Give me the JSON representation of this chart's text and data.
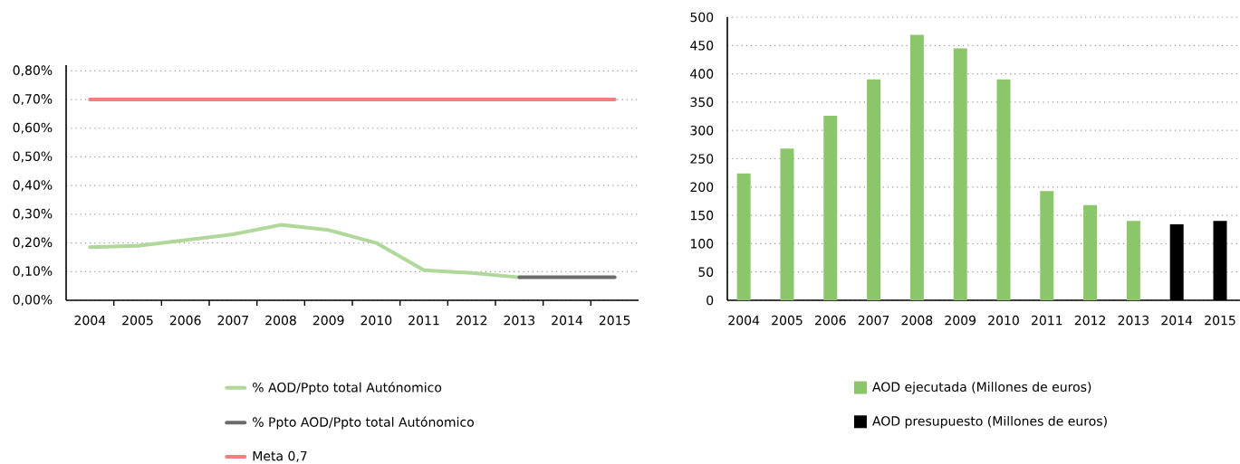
{
  "chart_data": [
    {
      "type": "line",
      "categories": [
        "2004",
        "2005",
        "2006",
        "2007",
        "2008",
        "2009",
        "2010",
        "2011",
        "2012",
        "2013",
        "2014",
        "2015"
      ],
      "series": [
        {
          "name": "% AOD/Ppto total Autónomico",
          "color": "#b0d89a",
          "values": [
            0.185,
            0.19,
            0.21,
            0.23,
            0.263,
            0.245,
            0.2,
            0.105,
            0.095,
            0.08,
            null,
            null
          ]
        },
        {
          "name": "% Ppto AOD/Ppto total Autónomico",
          "color": "#6b6b6b",
          "values": [
            null,
            null,
            null,
            null,
            null,
            null,
            null,
            null,
            null,
            0.08,
            0.08,
            0.08
          ]
        },
        {
          "name": "Meta 0,7",
          "color": "#f27f7f",
          "values": [
            0.7,
            0.7,
            0.7,
            0.7,
            0.7,
            0.7,
            0.7,
            0.7,
            0.7,
            0.7,
            0.7,
            0.7
          ]
        }
      ],
      "ylim": [
        0,
        0.82
      ],
      "yticks": [
        {
          "value": 0,
          "label": "0,00%"
        },
        {
          "value": 0.1,
          "label": "0,10%"
        },
        {
          "value": 0.2,
          "label": "0,20%"
        },
        {
          "value": 0.3,
          "label": "0,30%"
        },
        {
          "value": 0.4,
          "label": "0,40%"
        },
        {
          "value": 0.5,
          "label": "0,50%"
        },
        {
          "value": 0.6,
          "label": "0,60%"
        },
        {
          "value": 0.7,
          "label": "0,70%"
        },
        {
          "value": 0.8,
          "label": "0,80%"
        }
      ],
      "grid": "y",
      "legend": "bottom",
      "marker": "none",
      "line_style": "solid"
    },
    {
      "type": "bar",
      "categories": [
        "2004",
        "2005",
        "2006",
        "2007",
        "2008",
        "2009",
        "2010",
        "2011",
        "2012",
        "2013",
        "2014",
        "2015"
      ],
      "series": [
        {
          "name": "AOD ejecutada (Millones de euros)",
          "color": "#8cc66b",
          "values": [
            224,
            268,
            326,
            390,
            469,
            445,
            390,
            193,
            168,
            140,
            null,
            null
          ]
        },
        {
          "name": "AOD presupuesto (Millones de euros)",
          "color": "#000000",
          "values": [
            null,
            null,
            null,
            null,
            null,
            null,
            null,
            null,
            null,
            null,
            134,
            140
          ]
        }
      ],
      "ylim": [
        0,
        500
      ],
      "yticks": [
        0,
        50,
        100,
        150,
        200,
        250,
        300,
        350,
        400,
        450,
        500
      ],
      "grid": "y",
      "legend": "bottom"
    }
  ]
}
